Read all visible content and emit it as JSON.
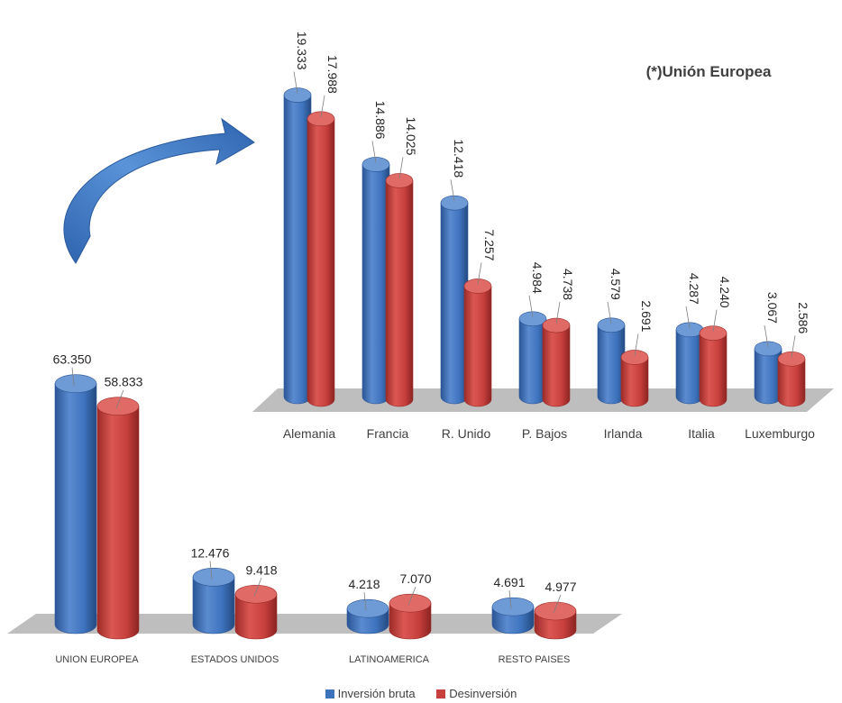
{
  "colors": {
    "blue": "#3E73BE",
    "blue_dark": "#2A5596",
    "blue_light": "#6E9AD6",
    "red": "#C8403D",
    "red_dark": "#9C2B28",
    "red_light": "#E06A66",
    "floor": "#BEBEBE",
    "label": "#262626",
    "arrow": "#3B78C4"
  },
  "icons": {
    "transition_arrow": "curved-arrow-icon"
  },
  "chart_data": [
    {
      "type": "bar",
      "id": "destinos",
      "categories": [
        "UNION EUROPEA",
        "ESTADOS UNIDOS",
        "LATINOAMERICA",
        "RESTO PAISES"
      ],
      "series": [
        {
          "name": "Inversión bruta",
          "values": [
            63.35,
            12.476,
            4.218,
            4.691
          ],
          "labels": [
            "63.350",
            "12.476",
            "4.218",
            "4.691"
          ]
        },
        {
          "name": "Desinversión",
          "values": [
            58.833,
            9.418,
            7.07,
            4.977
          ],
          "labels": [
            "58.833",
            "9.418",
            "7.070",
            "4.977"
          ]
        }
      ]
    },
    {
      "type": "bar",
      "id": "union_europea",
      "title": "(*)Unión Europea",
      "categories": [
        "Alemania",
        "Francia",
        "R. Unido",
        "P. Bajos",
        "Irlanda",
        "Italia",
        "Luxemburgo"
      ],
      "series": [
        {
          "name": "Inversión bruta",
          "values": [
            19.333,
            14.886,
            12.418,
            4.984,
            4.579,
            4.287,
            3.067
          ],
          "labels": [
            "19.333",
            "14.886",
            "12.418",
            "4.984",
            "4.579",
            "4.287",
            "3.067"
          ]
        },
        {
          "name": "Desinversión",
          "values": [
            17.988,
            14.025,
            7.257,
            4.738,
            2.691,
            4.24,
            2.586
          ],
          "labels": [
            "17.988",
            "14.025",
            "7.257",
            "4.738",
            "2.691",
            "4.240",
            "2.586"
          ]
        }
      ]
    }
  ],
  "legend": {
    "items": [
      "Inversión bruta",
      "Desinversión"
    ]
  }
}
